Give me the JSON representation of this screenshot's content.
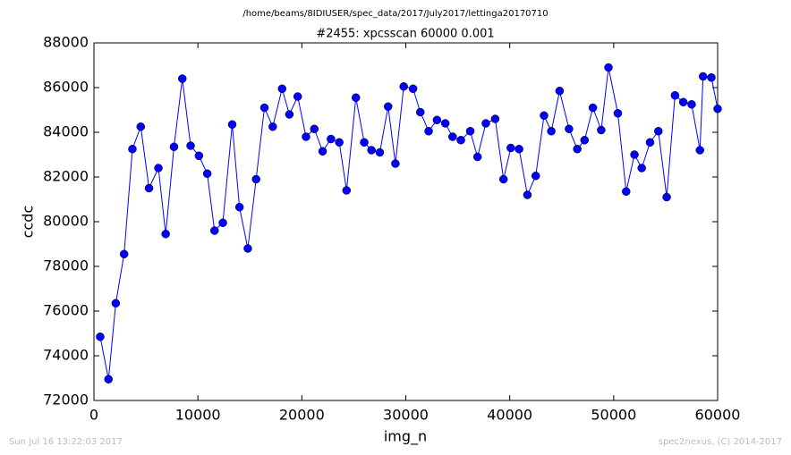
{
  "chart_data": {
    "type": "line",
    "suptitle": "/home/beams/8IDIUSER/spec_data/2017/July2017/lettinga20170710",
    "title": "#2455: xpcsscan 60000 0.001",
    "xlabel": "img_n",
    "ylabel": "ccdc",
    "color": "#0000ff",
    "x": [
      600,
      1400,
      2100,
      2900,
      3700,
      4500,
      5300,
      6200,
      6900,
      7700,
      8500,
      9300,
      10100,
      10900,
      11600,
      12400,
      13300,
      14000,
      14800,
      15600,
      16400,
      17200,
      18100,
      18800,
      19600,
      20400,
      21200,
      22000,
      22800,
      23600,
      24300,
      25200,
      26000,
      26700,
      27500,
      28300,
      29000,
      29800,
      30700,
      31400,
      32200,
      33000,
      33800,
      34500,
      35300,
      36200,
      36900,
      37700,
      38600,
      39400,
      40100,
      40900,
      41700,
      42500,
      43300,
      44000,
      44800,
      45700,
      46500,
      47200,
      48000,
      48800,
      49500,
      50400,
      51200,
      52000,
      52700,
      53500,
      54300,
      55100,
      55900,
      56700,
      57500,
      58300,
      58600,
      59400,
      60000
    ],
    "values": [
      74850,
      72950,
      76350,
      78550,
      83250,
      84250,
      81500,
      82400,
      79450,
      83350,
      86400,
      83400,
      82950,
      82150,
      79600,
      79950,
      84350,
      80650,
      78800,
      81900,
      85100,
      84250,
      85950,
      84800,
      85600,
      83800,
      84150,
      83150,
      83700,
      83550,
      81400,
      85550,
      83550,
      83200,
      83100,
      85150,
      82600,
      86050,
      85950,
      84900,
      84050,
      84550,
      84400,
      83800,
      83650,
      84050,
      82900,
      84400,
      84600,
      81900,
      83300,
      83250,
      81200,
      82050,
      84750,
      84050,
      85850,
      84150,
      83250,
      83650,
      85100,
      84100,
      86900,
      84850,
      81350,
      83000,
      82400,
      83550,
      84050,
      81100,
      85650,
      85350,
      85250,
      83200,
      86500,
      86450,
      85050
    ],
    "xlim": [
      0,
      60000
    ],
    "xticks": [
      0,
      10000,
      20000,
      30000,
      40000,
      50000,
      60000
    ],
    "ylim": [
      72000,
      88000
    ],
    "yticks": [
      72000,
      74000,
      76000,
      78000,
      80000,
      82000,
      84000,
      86000,
      88000
    ]
  },
  "footer": {
    "left": "Sun Jul 16 13:22:03 2017",
    "right": "spec2nexus, (C) 2014-2017"
  }
}
